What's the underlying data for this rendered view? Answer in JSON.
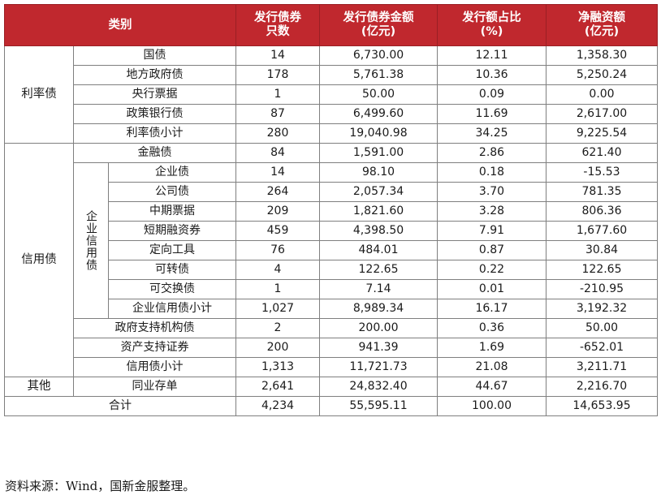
{
  "header": {
    "category": "类别",
    "count_line1": "发行债券",
    "count_line2": "只数",
    "amount_line1": "发行债券金额",
    "amount_line2": "(亿元)",
    "ratio_line1": "发行额占比",
    "ratio_line2": "(%)",
    "net_line1": "净融资额",
    "net_line2": "(亿元)"
  },
  "groups": {
    "rate": "利率债",
    "credit": "信用债",
    "corporate_credit": "企业信用债",
    "other": "其他"
  },
  "rows": {
    "treasury": {
      "name": "国债",
      "count": "14",
      "amount": "6,730.00",
      "ratio": "12.11",
      "net": "1,358.30"
    },
    "local_gov": {
      "name": "地方政府债",
      "count": "178",
      "amount": "5,761.38",
      "ratio": "10.36",
      "net": "5,250.24"
    },
    "central_bank": {
      "name": "央行票据",
      "count": "1",
      "amount": "50.00",
      "ratio": "0.09",
      "net": "0.00"
    },
    "policy_bank": {
      "name": "政策银行债",
      "count": "87",
      "amount": "6,499.60",
      "ratio": "11.69",
      "net": "2,617.00"
    },
    "rate_subtotal": {
      "name": "利率债小计",
      "count": "280",
      "amount": "19,040.98",
      "ratio": "34.25",
      "net": "9,225.54"
    },
    "financial": {
      "name": "金融债",
      "count": "84",
      "amount": "1,591.00",
      "ratio": "2.86",
      "net": "621.40"
    },
    "enterprise": {
      "name": "企业债",
      "count": "14",
      "amount": "98.10",
      "ratio": "0.18",
      "net": "-15.53"
    },
    "company": {
      "name": "公司债",
      "count": "264",
      "amount": "2,057.34",
      "ratio": "3.70",
      "net": "781.35"
    },
    "mtn": {
      "name": "中期票据",
      "count": "209",
      "amount": "1,821.60",
      "ratio": "3.28",
      "net": "806.36"
    },
    "scp": {
      "name": "短期融资券",
      "count": "459",
      "amount": "4,398.50",
      "ratio": "7.91",
      "net": "1,677.60"
    },
    "ppn": {
      "name": "定向工具",
      "count": "76",
      "amount": "484.01",
      "ratio": "0.87",
      "net": "30.84"
    },
    "convertible": {
      "name": "可转债",
      "count": "4",
      "amount": "122.65",
      "ratio": "0.22",
      "net": "122.65"
    },
    "exchangeable": {
      "name": "可交换债",
      "count": "1",
      "amount": "7.14",
      "ratio": "0.01",
      "net": "-210.95"
    },
    "corp_subtotal": {
      "name": "企业信用债小计",
      "count": "1,027",
      "amount": "8,989.34",
      "ratio": "16.17",
      "net": "3,192.32"
    },
    "gov_agency": {
      "name": "政府支持机构债",
      "count": "2",
      "amount": "200.00",
      "ratio": "0.36",
      "net": "50.00"
    },
    "abs": {
      "name": "资产支持证券",
      "count": "200",
      "amount": "941.39",
      "ratio": "1.69",
      "net": "-652.01"
    },
    "credit_subtotal": {
      "name": "信用债小计",
      "count": "1,313",
      "amount": "11,721.73",
      "ratio": "21.08",
      "net": "3,211.71"
    },
    "ncd": {
      "name": "同业存单",
      "count": "2,641",
      "amount": "24,832.40",
      "ratio": "44.67",
      "net": "2,216.70"
    },
    "total": {
      "name": "合计",
      "count": "4,234",
      "amount": "55,595.11",
      "ratio": "100.00",
      "net": "14,653.95"
    }
  },
  "source": "资料来源：Wind，国新金服整理。"
}
